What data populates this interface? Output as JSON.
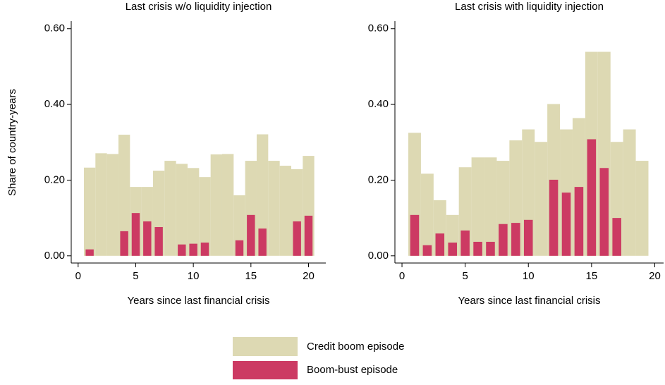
{
  "chart_data": [
    {
      "type": "bar",
      "title": "Last crisis w/o liquidity injection",
      "xlabel": "Years since last financial crisis",
      "ylabel": "Share of country-years",
      "x": [
        1,
        2,
        3,
        4,
        5,
        6,
        7,
        8,
        9,
        10,
        11,
        12,
        13,
        14,
        15,
        16,
        17,
        18,
        19,
        20
      ],
      "series": [
        {
          "name": "Credit boom episode",
          "color": "#ddd9b3",
          "values": [
            0.233,
            0.271,
            0.269,
            0.32,
            0.182,
            0.182,
            0.225,
            0.251,
            0.243,
            0.232,
            0.208,
            0.268,
            0.269,
            0.16,
            0.251,
            0.321,
            0.251,
            0.238,
            0.229,
            0.264
          ]
        },
        {
          "name": "Boom-bust episode",
          "color": "#cc3a63",
          "values": [
            0.017,
            0,
            0,
            0.065,
            0.113,
            0.091,
            0.076,
            0,
            0.03,
            0.032,
            0.035,
            0,
            0,
            0.041,
            0.108,
            0.072,
            0,
            0,
            0.091,
            0.106
          ]
        }
      ],
      "xlim": [
        -0.6,
        21.5
      ],
      "xticks": [
        0,
        5,
        10,
        15,
        20
      ],
      "ylim": [
        -0.019,
        0.62
      ],
      "yticks": [
        {
          "value": 0,
          "label": "0.00"
        },
        {
          "value": 0.2,
          "label": "0.20"
        },
        {
          "value": 0.4,
          "label": "0.40"
        },
        {
          "value": 0.6,
          "label": "0.60"
        }
      ]
    },
    {
      "type": "bar",
      "title": "Last crisis with liquidity injection",
      "xlabel": "Years since last financial crisis",
      "x": [
        1,
        2,
        3,
        4,
        5,
        6,
        7,
        8,
        9,
        10,
        11,
        12,
        13,
        14,
        15,
        16,
        17,
        18,
        19
      ],
      "series": [
        {
          "name": "Credit boom episode",
          "color": "#ddd9b3",
          "values": [
            0.325,
            0.217,
            0.147,
            0.108,
            0.234,
            0.26,
            0.26,
            0.251,
            0.305,
            0.334,
            0.301,
            0.401,
            0.334,
            0.364,
            0.539,
            0.539,
            0.301,
            0.334,
            0.251
          ]
        },
        {
          "name": "Boom-bust episode",
          "color": "#cc3a63",
          "values": [
            0.108,
            0.028,
            0.059,
            0.035,
            0.067,
            0.037,
            0.037,
            0.084,
            0.087,
            0.095,
            0,
            0.201,
            0.167,
            0.182,
            0.308,
            0.232,
            0.1,
            0,
            0
          ]
        }
      ],
      "xlim": [
        -0.56,
        20.7
      ],
      "xticks": [
        0,
        5,
        10,
        15,
        20
      ],
      "ylim": [
        -0.019,
        0.62
      ],
      "yticks": [
        {
          "value": 0,
          "label": "0.00"
        },
        {
          "value": 0.2,
          "label": "0.20"
        },
        {
          "value": 0.4,
          "label": "0.40"
        },
        {
          "value": 0.6,
          "label": "0.60"
        }
      ]
    }
  ]
}
